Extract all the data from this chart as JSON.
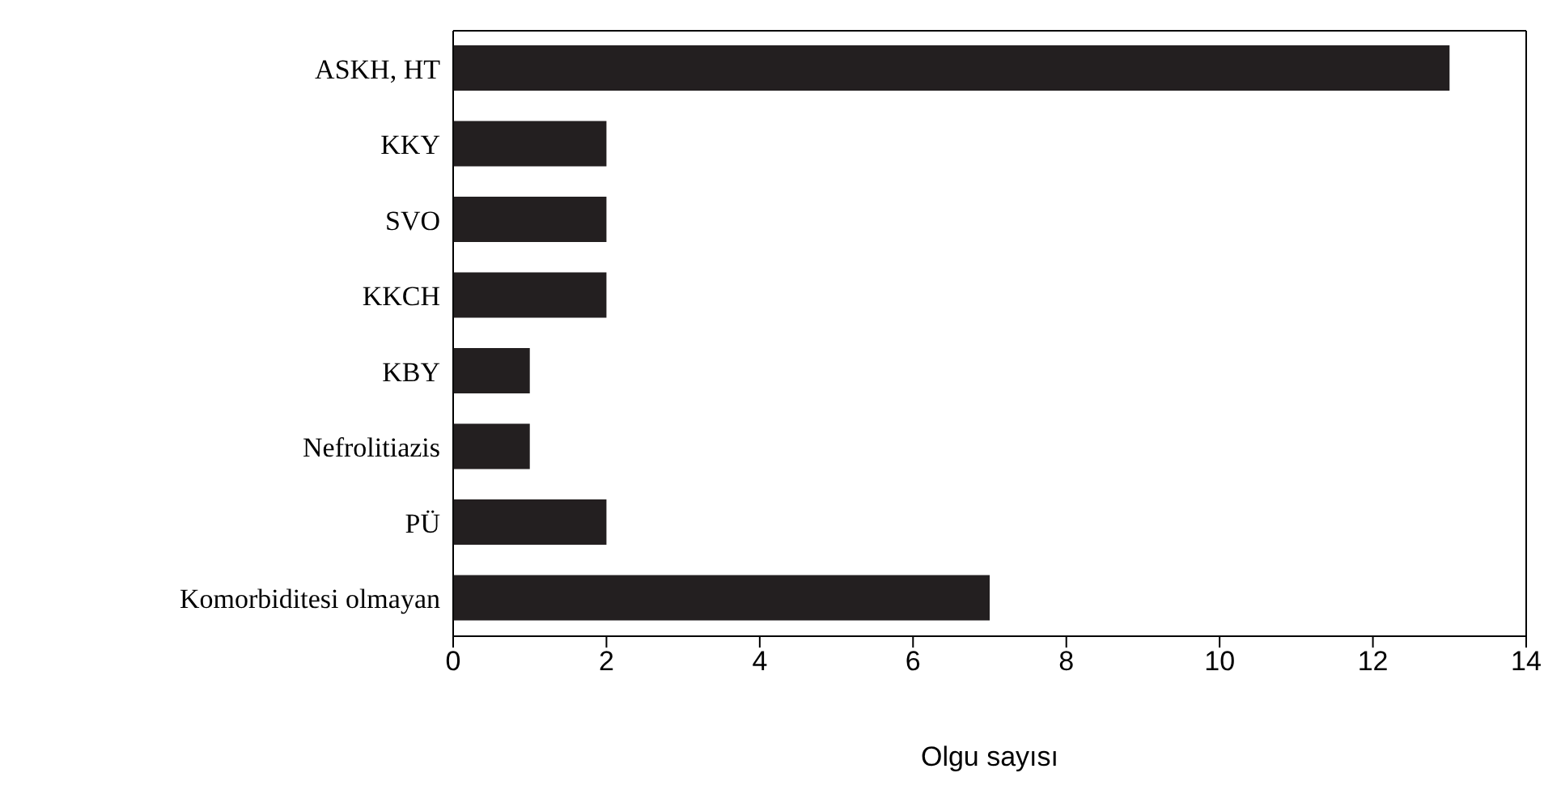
{
  "chart_data": {
    "type": "bar",
    "orientation": "horizontal",
    "xlabel": "Olgu sayısı",
    "categories": [
      "ASKH, HT",
      "KKY",
      "SVO",
      "KKCH",
      "KBY",
      "Nefrolitiazis",
      "PÜ",
      "Komorbiditesi olmayan"
    ],
    "values": [
      13,
      2,
      2,
      2,
      1,
      1,
      2,
      7
    ],
    "color": "#231f20",
    "xlim": [
      0,
      14
    ],
    "xticks": [
      0,
      2,
      4,
      6,
      8,
      10,
      12,
      14
    ],
    "grid": false,
    "legend": false
  }
}
